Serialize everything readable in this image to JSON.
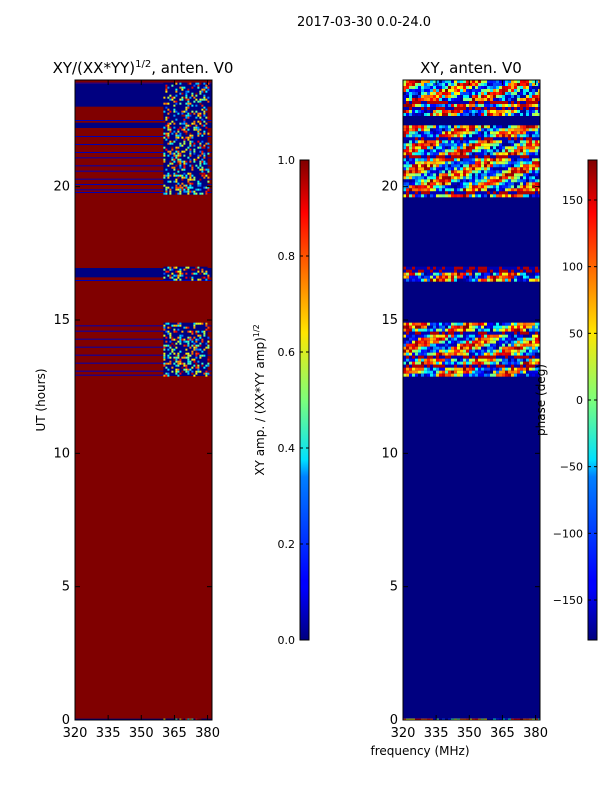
{
  "figure_title": "2017-03-30 0.0-24.0",
  "chart_data": [
    {
      "type": "heatmap",
      "title": "XY/(XX*YY)^{1/2}, anten. V0",
      "title_main": "XY/(XX*YY)",
      "title_exp": "1/2",
      "title_suffix": ", anten. V0",
      "xlabel": "",
      "ylabel": "UT (hours)",
      "xlim": [
        320,
        382
      ],
      "ylim": [
        0,
        24
      ],
      "xticks": [
        320,
        335,
        350,
        365,
        380
      ],
      "yticks": [
        0,
        5,
        10,
        15,
        20
      ],
      "colormap": "jet",
      "background_value": 1.0,
      "flagged_value": 0.0,
      "flagged_hour_ranges": [
        [
          23.0,
          23.85
        ],
        [
          22.2,
          22.4
        ],
        [
          16.6,
          16.95
        ],
        [
          0,
          0.05
        ]
      ],
      "rfi_band_mhz": [
        360,
        380
      ],
      "rfi_hour_ranges": [
        [
          19.7,
          23.9
        ],
        [
          16.5,
          17.0
        ],
        [
          12.9,
          14.9
        ],
        [
          0,
          0.05
        ]
      ],
      "thin_line_hours": [
        23.9,
        22.5,
        21.9,
        21.6,
        21.3,
        21.1,
        20.8,
        20.6,
        20.3,
        20.1,
        19.9,
        19.8,
        16.5,
        14.8,
        14.6,
        14.3,
        14.0,
        13.7,
        13.4,
        13.1,
        12.95
      ],
      "colorbar": {
        "label": "XY amp. / (XX*YY amp)^{1/2}",
        "label_main": "XY amp. / (XX*YY amp)",
        "label_exp": "1/2",
        "min": 0.0,
        "max": 1.0,
        "ticks": [
          0.0,
          0.2,
          0.4,
          0.6,
          0.8,
          1.0
        ],
        "tick_labels": [
          "0.0",
          "0.2",
          "0.4",
          "0.6",
          "0.8",
          "1.0"
        ]
      }
    },
    {
      "type": "heatmap",
      "title": "XY, anten. V0",
      "xlabel": "frequency (MHz)",
      "ylabel": "",
      "xlim": [
        320,
        382
      ],
      "ylim": [
        0,
        24
      ],
      "xticks": [
        320,
        335,
        350,
        365,
        380
      ],
      "yticks": [
        0,
        5,
        10,
        15,
        20
      ],
      "colormap": "jet",
      "background_value": -180,
      "noisy_hour_ranges": [
        [
          22.7,
          24.0
        ],
        [
          19.7,
          22.3
        ],
        [
          16.5,
          17.0
        ],
        [
          12.9,
          14.9
        ],
        [
          0,
          0.05
        ]
      ],
      "colorbar": {
        "label": "phase (deg)",
        "min": -180,
        "max": 180,
        "ticks": [
          -150,
          -100,
          -50,
          0,
          50,
          100,
          150
        ],
        "tick_labels": [
          "−150",
          "−100",
          "−50",
          "0",
          "50",
          "100",
          "150"
        ]
      }
    }
  ],
  "colors": {
    "background": "#ffffff",
    "axis": "#000000",
    "jet_dark_red": "#800000",
    "jet_dark_blue": "#00007f"
  }
}
